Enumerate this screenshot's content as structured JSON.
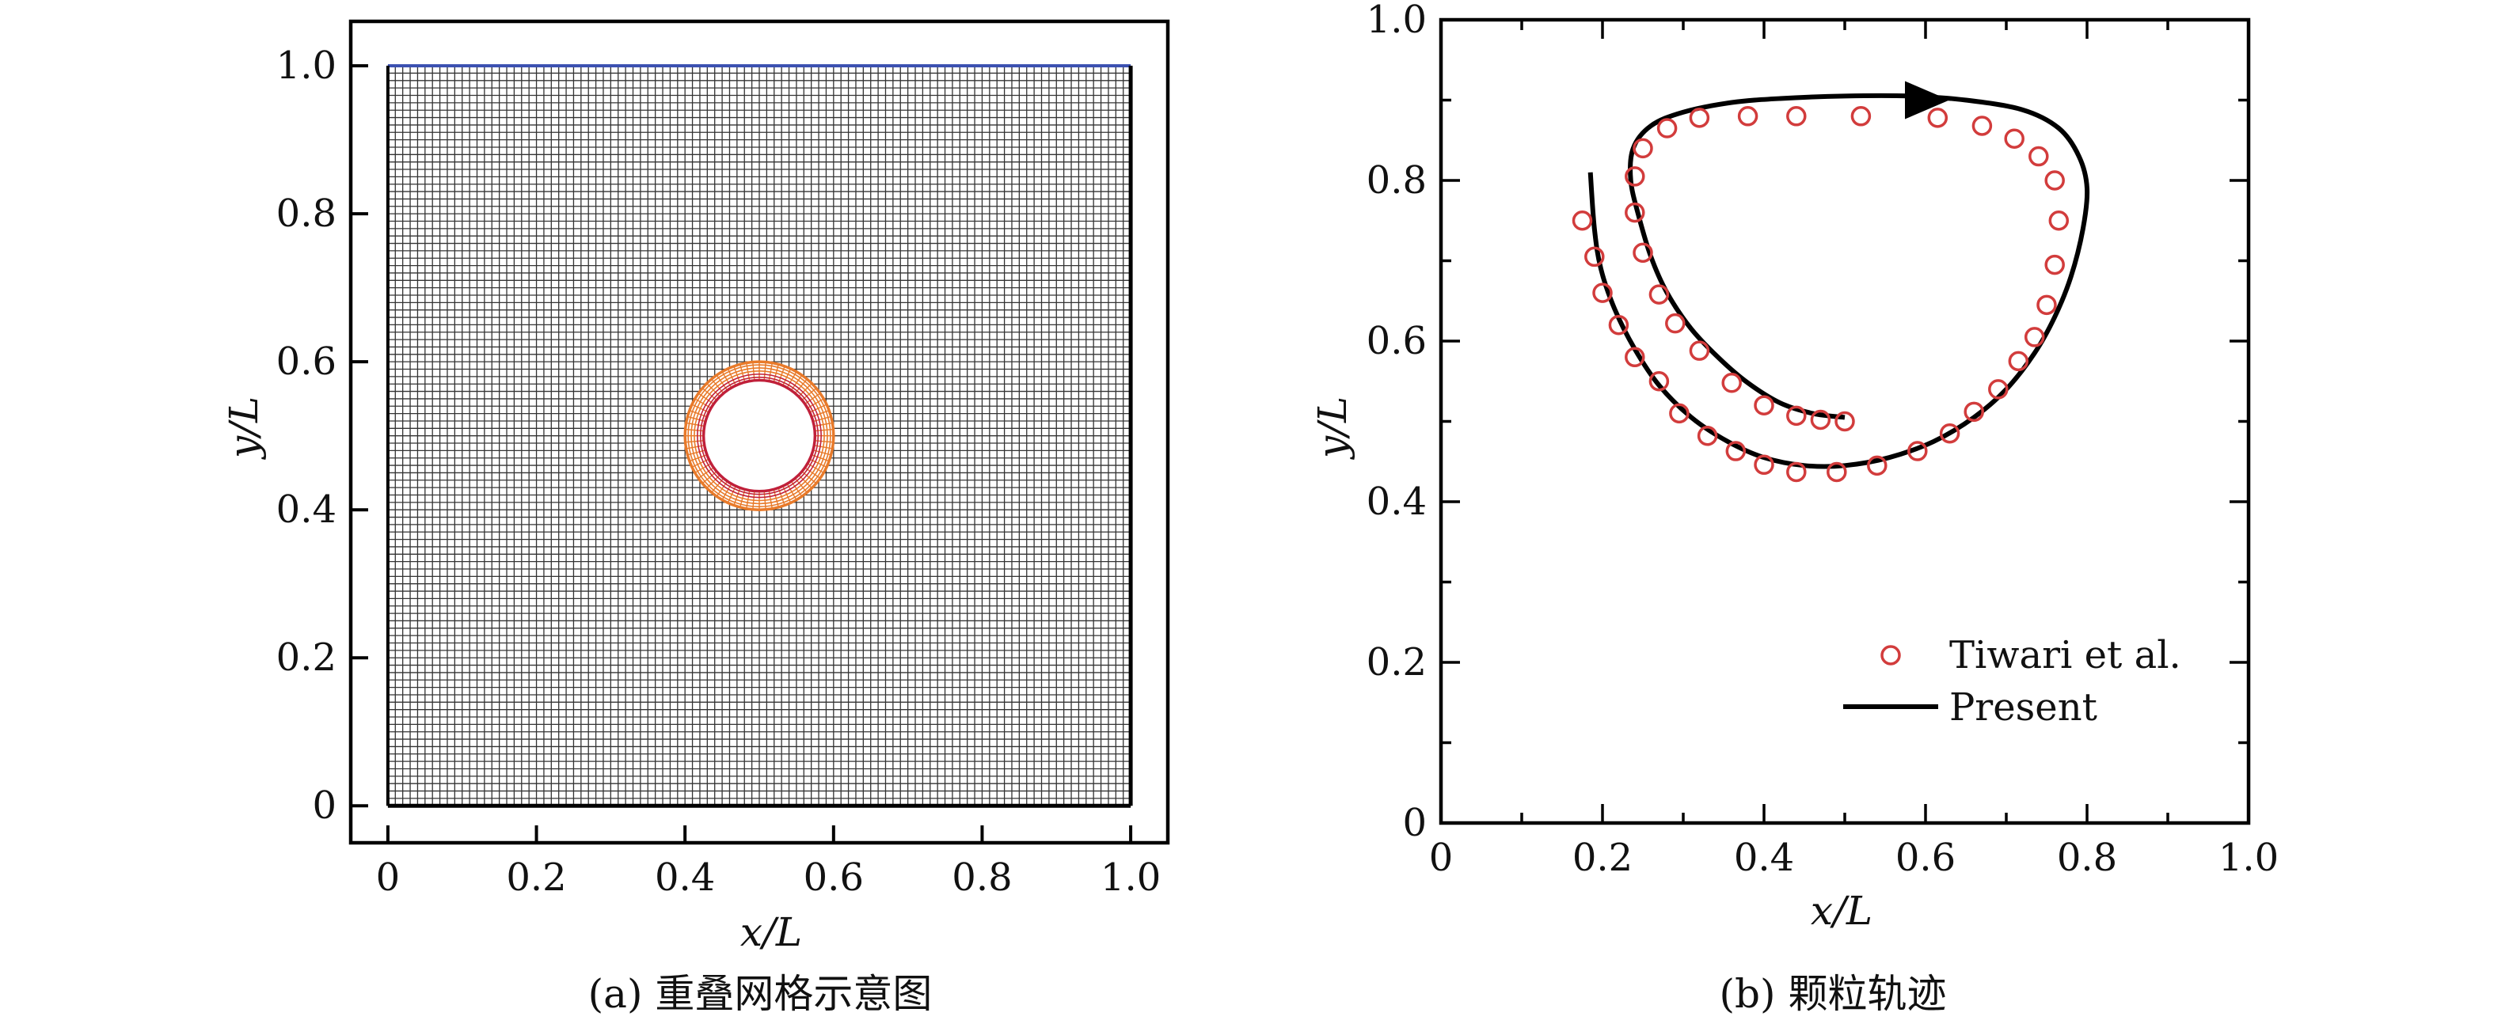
{
  "chart_data": [
    {
      "type": "mesh",
      "caption": "(a) 重叠网格示意图",
      "xlabel": "x/L",
      "ylabel": "y/L",
      "xlim": [
        -0.05,
        1.05
      ],
      "ylim": [
        -0.05,
        1.06
      ],
      "xticks": [
        0,
        0.2,
        0.4,
        0.6,
        0.8,
        1.0
      ],
      "xtick_labels": [
        "0",
        "0.2",
        "0.4",
        "0.6",
        "0.8",
        "1.0"
      ],
      "yticks": [
        0,
        0.2,
        0.4,
        0.6,
        0.8,
        1.0
      ],
      "ytick_labels": [
        "0",
        "0.2",
        "0.4",
        "0.6",
        "0.8",
        "1.0"
      ],
      "background_grid": {
        "x_range": [
          0,
          1
        ],
        "y_range": [
          0,
          1
        ],
        "cells": 100,
        "color": "#333333"
      },
      "overset_grid": {
        "center": [
          0.5,
          0.5
        ],
        "inner_radius": 0.075,
        "outer_radius": 0.1,
        "rings": 6,
        "spokes": 72,
        "inner_color": "#c0203a",
        "outer_color": "#e87a2a"
      },
      "top_boundary_color": "#3a4fb0"
    },
    {
      "type": "line+scatter",
      "caption": "(b) 颗粒轨迹",
      "xlabel": "x/L",
      "ylabel": "y/L",
      "xlim": [
        0,
        1.0
      ],
      "ylim": [
        0,
        1.0
      ],
      "xticks": [
        0,
        0.2,
        0.4,
        0.6,
        0.8,
        1.0
      ],
      "xtick_labels": [
        "0",
        "0.2",
        "0.4",
        "0.6",
        "0.8",
        "1.0"
      ],
      "yticks": [
        0,
        0.2,
        0.4,
        0.6,
        0.8,
        1.0
      ],
      "ytick_labels": [
        "0",
        "0.2",
        "0.4",
        "0.6",
        "0.8",
        "1.0"
      ],
      "legend_position": "bottom-right",
      "series": [
        {
          "name": "Tiwari et al.",
          "kind": "scatter",
          "marker": "open-circle",
          "color": "#d23c3c",
          "points": [
            [
              0.5,
              0.5
            ],
            [
              0.47,
              0.502
            ],
            [
              0.44,
              0.507
            ],
            [
              0.4,
              0.52
            ],
            [
              0.36,
              0.548
            ],
            [
              0.32,
              0.588
            ],
            [
              0.29,
              0.622
            ],
            [
              0.27,
              0.658
            ],
            [
              0.25,
              0.71
            ],
            [
              0.24,
              0.76
            ],
            [
              0.24,
              0.805
            ],
            [
              0.25,
              0.84
            ],
            [
              0.28,
              0.865
            ],
            [
              0.32,
              0.878
            ],
            [
              0.38,
              0.88
            ],
            [
              0.44,
              0.88
            ],
            [
              0.52,
              0.88
            ],
            [
              0.615,
              0.878
            ],
            [
              0.67,
              0.868
            ],
            [
              0.71,
              0.852
            ],
            [
              0.74,
              0.83
            ],
            [
              0.76,
              0.8
            ],
            [
              0.765,
              0.75
            ],
            [
              0.76,
              0.695
            ],
            [
              0.75,
              0.645
            ],
            [
              0.735,
              0.605
            ],
            [
              0.715,
              0.575
            ],
            [
              0.69,
              0.54
            ],
            [
              0.66,
              0.512
            ],
            [
              0.63,
              0.485
            ],
            [
              0.59,
              0.463
            ],
            [
              0.54,
              0.445
            ],
            [
              0.49,
              0.437
            ],
            [
              0.44,
              0.437
            ],
            [
              0.4,
              0.446
            ],
            [
              0.365,
              0.463
            ],
            [
              0.33,
              0.482
            ],
            [
              0.295,
              0.51
            ],
            [
              0.27,
              0.55
            ],
            [
              0.24,
              0.58
            ],
            [
              0.22,
              0.62
            ],
            [
              0.2,
              0.66
            ],
            [
              0.19,
              0.705
            ],
            [
              0.175,
              0.75
            ]
          ]
        },
        {
          "name": "Present",
          "kind": "line",
          "color": "#000000",
          "points": [
            [
              0.5,
              0.505
            ],
            [
              0.46,
              0.51
            ],
            [
              0.42,
              0.523
            ],
            [
              0.38,
              0.548
            ],
            [
              0.345,
              0.578
            ],
            [
              0.31,
              0.615
            ],
            [
              0.28,
              0.66
            ],
            [
              0.26,
              0.705
            ],
            [
              0.245,
              0.755
            ],
            [
              0.235,
              0.8
            ],
            [
              0.238,
              0.84
            ],
            [
              0.26,
              0.868
            ],
            [
              0.3,
              0.885
            ],
            [
              0.36,
              0.897
            ],
            [
              0.42,
              0.902
            ],
            [
              0.5,
              0.905
            ],
            [
              0.58,
              0.905
            ],
            [
              0.65,
              0.9
            ],
            [
              0.72,
              0.888
            ],
            [
              0.765,
              0.865
            ],
            [
              0.79,
              0.83
            ],
            [
              0.8,
              0.79
            ],
            [
              0.795,
              0.74
            ],
            [
              0.78,
              0.68
            ],
            [
              0.76,
              0.63
            ],
            [
              0.735,
              0.585
            ],
            [
              0.7,
              0.54
            ],
            [
              0.66,
              0.505
            ],
            [
              0.61,
              0.475
            ],
            [
              0.555,
              0.455
            ],
            [
              0.5,
              0.445
            ],
            [
              0.45,
              0.445
            ],
            [
              0.4,
              0.455
            ],
            [
              0.355,
              0.475
            ],
            [
              0.31,
              0.505
            ],
            [
              0.27,
              0.545
            ],
            [
              0.24,
              0.59
            ],
            [
              0.215,
              0.64
            ],
            [
              0.198,
              0.69
            ],
            [
              0.19,
              0.74
            ],
            [
              0.185,
              0.81
            ]
          ],
          "arrow_at": [
            0.6,
            0.9
          ]
        }
      ]
    }
  ]
}
